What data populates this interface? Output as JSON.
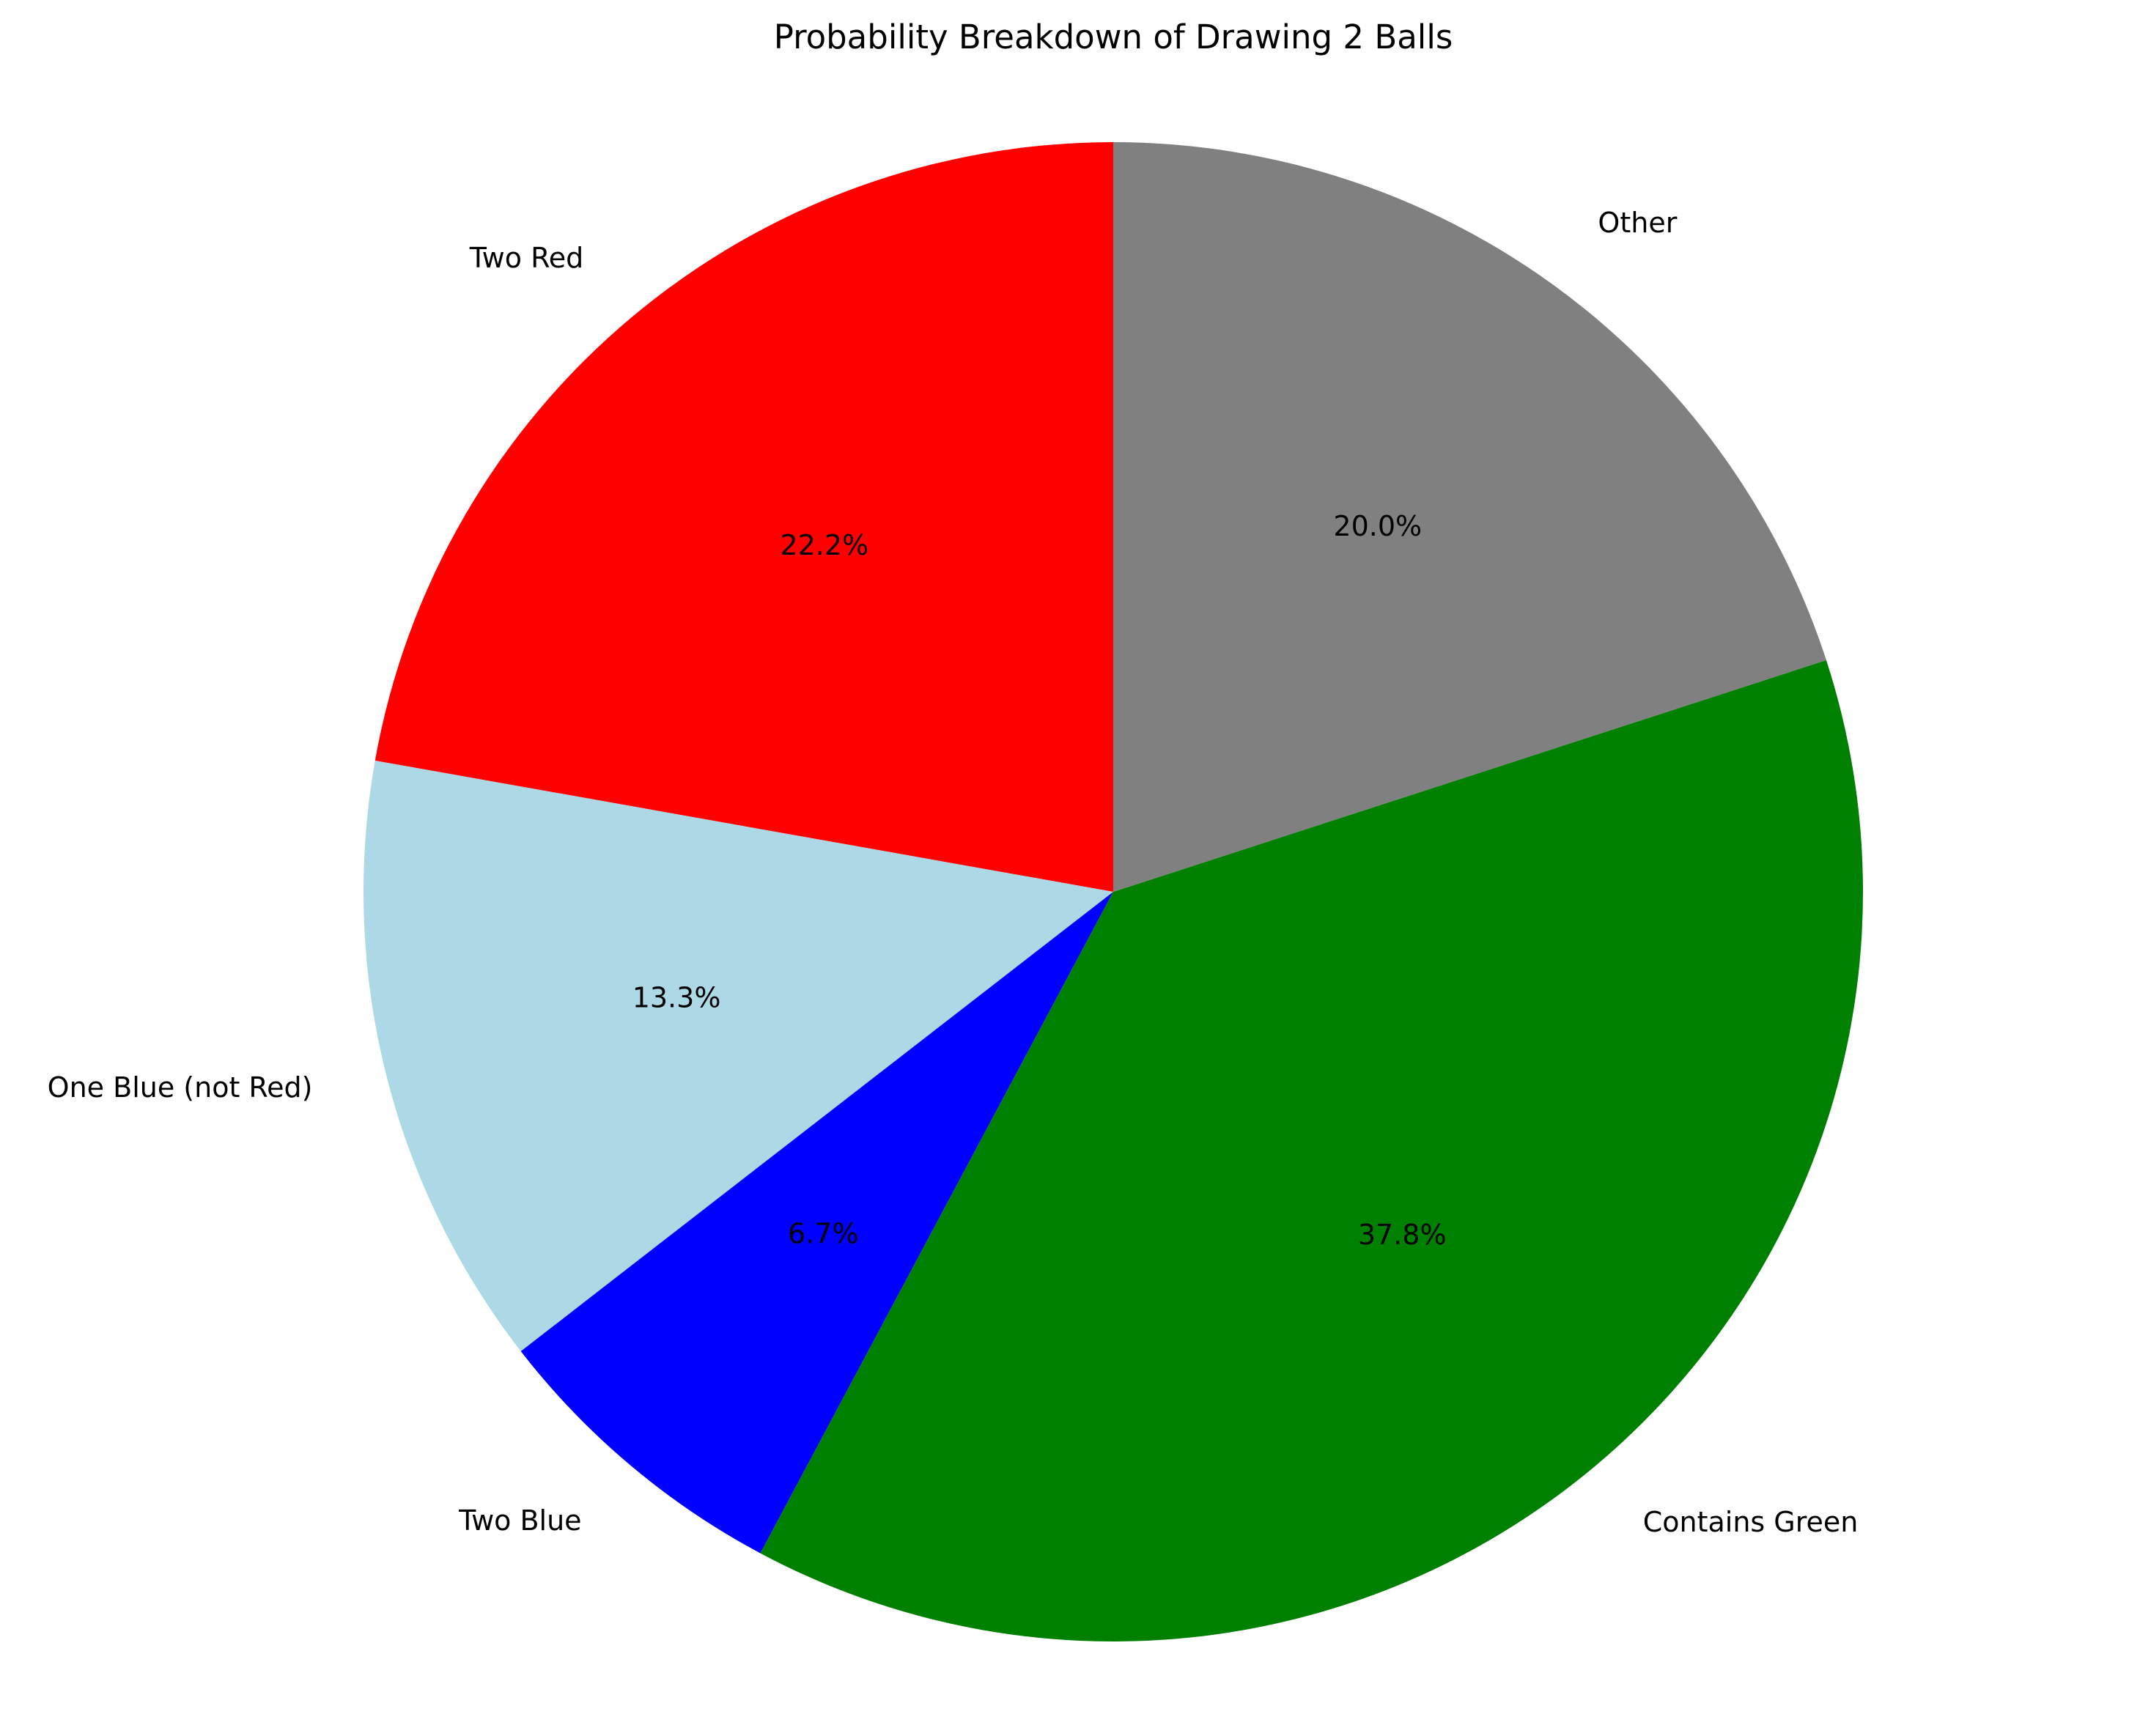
{
  "chart_data": {
    "type": "pie",
    "title": "Probability Breakdown of Drawing 2 Balls",
    "start_angle": 90,
    "direction": "counterclockwise",
    "slices": [
      {
        "label": "Two Red",
        "value": 22.2,
        "pct_label": "22.2%",
        "color": "#ff0000"
      },
      {
        "label": "One Blue (not Red)",
        "value": 13.3,
        "pct_label": "13.3%",
        "color": "#add8e6"
      },
      {
        "label": "Two Blue",
        "value": 6.7,
        "pct_label": "6.7%",
        "color": "#0000ff"
      },
      {
        "label": "Contains Green",
        "value": 37.8,
        "pct_label": "37.8%",
        "color": "#008000"
      },
      {
        "label": "Other",
        "value": 20.0,
        "pct_label": "20.0%",
        "color": "#808080"
      }
    ]
  }
}
